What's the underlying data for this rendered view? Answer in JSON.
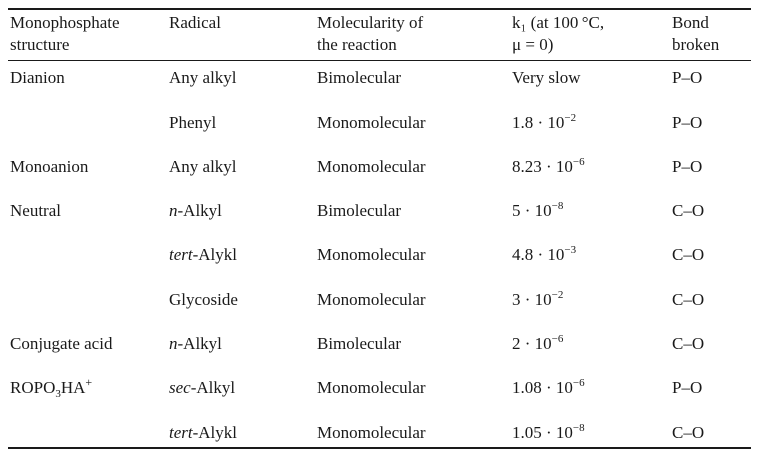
{
  "table": {
    "headers": {
      "structure": [
        "Monophosphate",
        "structure"
      ],
      "radical": [
        "Radical"
      ],
      "molecularity": [
        "Molecularity of",
        "the reaction"
      ],
      "k1": [
        "k₁ (at 100 °C,",
        "μ = 0)"
      ],
      "bond": [
        "Bond",
        "broken"
      ]
    },
    "rows": [
      {
        "structure": "Dianion",
        "radical_prefix": "",
        "radical": "Any alkyl",
        "molecularity": "Bimolecular",
        "k_mantissa": "Very slow",
        "k_exp": "",
        "bond": "P–O"
      },
      {
        "structure": "",
        "radical_prefix": "",
        "radical": "Phenyl",
        "molecularity": "Monomolecular",
        "k_mantissa": "1.8 · 10",
        "k_exp": "−2",
        "bond": "P–O"
      },
      {
        "structure": "Monoanion",
        "radical_prefix": "",
        "radical": "Any alkyl",
        "molecularity": "Monomolecular",
        "k_mantissa": "8.23 · 10",
        "k_exp": "−6",
        "bond": "P–O"
      },
      {
        "structure": "Neutral",
        "radical_prefix": "n",
        "radical": "-Alkyl",
        "molecularity": "Bimolecular",
        "k_mantissa": "5 · 10",
        "k_exp": "−8",
        "bond": "C–O"
      },
      {
        "structure": "",
        "radical_prefix": "tert",
        "radical": "-Alykl",
        "molecularity": "Monomolecular",
        "k_mantissa": "4.8 · 10",
        "k_exp": "−3",
        "bond": "C–O"
      },
      {
        "structure": "",
        "radical_prefix": "",
        "radical": "Glycoside",
        "molecularity": "Monomolecular",
        "k_mantissa": "3 · 10",
        "k_exp": "−2",
        "bond": "C–O"
      },
      {
        "structure": "Conjugate acid",
        "radical_prefix": "n",
        "radical": "-Alkyl",
        "molecularity": "Bimolecular",
        "k_mantissa": "2 · 10",
        "k_exp": "−6",
        "bond": "C–O"
      },
      {
        "structure": "ROPO",
        "radical_prefix": "sec",
        "radical": "-Alkyl",
        "molecularity": "Monomolecular",
        "k_mantissa": "1.08 · 10",
        "k_exp": "−6",
        "bond": "P–O"
      },
      {
        "structure": "",
        "radical_prefix": "tert",
        "radical": "-Alykl",
        "molecularity": "Monomolecular",
        "k_mantissa": "1.05 · 10",
        "k_exp": "−8",
        "bond": "C–O"
      }
    ],
    "formula": {
      "base": "ROPO",
      "sub": "3",
      "mid": "HA",
      "sup": "+"
    }
  }
}
